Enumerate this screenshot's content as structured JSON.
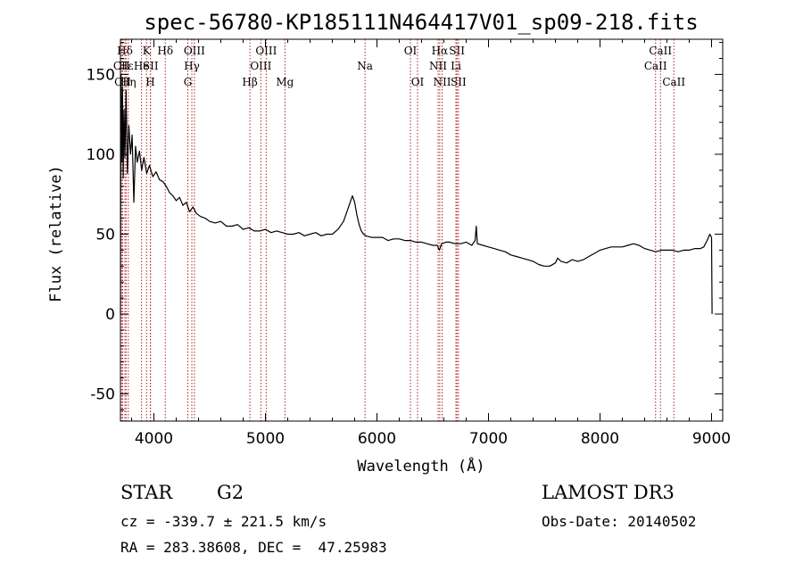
{
  "chart_data": {
    "type": "line",
    "title": "spec-56780-KP185111N464417V01_sp09-218.fits",
    "xlabel": "Wavelength (Å)",
    "ylabel": "Flux (relative)",
    "xlim": [
      3700,
      9100
    ],
    "ylim": [
      -67,
      172
    ],
    "x_ticks": [
      4000,
      5000,
      6000,
      7000,
      8000,
      9000
    ],
    "y_ticks": [
      -50,
      0,
      50,
      100,
      150
    ],
    "grid": false,
    "series_color": "#000000",
    "line_marker_color": "#b22222",
    "spectral_lines": [
      {
        "label": "CII",
        "x": 3710,
        "row": 1
      },
      {
        "label": "CII",
        "x": 3720,
        "row": 2
      },
      {
        "label": "Hδ",
        "x": 3740,
        "row": 0
      },
      {
        "label": "Hε",
        "x": 3750,
        "row": 1
      },
      {
        "label": "Hη",
        "x": 3770,
        "row": 2
      },
      {
        "label": "K",
        "x": 3934,
        "row": 0
      },
      {
        "label": "He",
        "x": 3889,
        "row": 1
      },
      {
        "label": "SII",
        "x": 3970,
        "row": 1
      },
      {
        "label": "H",
        "x": 3968,
        "row": 2
      },
      {
        "label": "Hδ",
        "x": 4102,
        "row": 0
      },
      {
        "label": "OIII",
        "x": 4363,
        "row": 0
      },
      {
        "label": "Hγ",
        "x": 4340,
        "row": 1
      },
      {
        "label": "G",
        "x": 4304,
        "row": 2
      },
      {
        "label": "Hβ",
        "x": 4861,
        "row": 2
      },
      {
        "label": "OIII",
        "x": 5007,
        "row": 0
      },
      {
        "label": "OIII",
        "x": 4959,
        "row": 1
      },
      {
        "label": "Mg",
        "x": 5175,
        "row": 2
      },
      {
        "label": "Na",
        "x": 5893,
        "row": 1
      },
      {
        "label": "OI",
        "x": 6300,
        "row": 0
      },
      {
        "label": "OI",
        "x": 6364,
        "row": 2
      },
      {
        "label": "Hα",
        "x": 6563,
        "row": 0
      },
      {
        "label": "NII",
        "x": 6548,
        "row": 1
      },
      {
        "label": "NII",
        "x": 6584,
        "row": 2
      },
      {
        "label": "SII",
        "x": 6717,
        "row": 0
      },
      {
        "label": "Li",
        "x": 6708,
        "row": 1
      },
      {
        "label": "SII",
        "x": 6731,
        "row": 2
      },
      {
        "label": "CaII",
        "x": 8542,
        "row": 0
      },
      {
        "label": "CaII",
        "x": 8498,
        "row": 1
      },
      {
        "label": "CaII",
        "x": 8662,
        "row": 2
      }
    ],
    "series": [
      {
        "x": [
          3700,
          3705,
          3712,
          3718,
          3725,
          3732,
          3740,
          3750,
          3762,
          3775,
          3790,
          3805,
          3820,
          3835,
          3850,
          3870,
          3890,
          3910,
          3935,
          3960,
          3990,
          4020,
          4050,
          4080,
          4110,
          4140,
          4170,
          4200,
          4230,
          4260,
          4290,
          4320,
          4350,
          4380,
          4420,
          4460,
          4500,
          4550,
          4600,
          4650,
          4700,
          4750,
          4800,
          4850,
          4900,
          4950,
          5000,
          5050,
          5100,
          5150,
          5200,
          5250,
          5300,
          5350,
          5400,
          5450,
          5500,
          5550,
          5600,
          5650,
          5700,
          5730,
          5760,
          5780,
          5800,
          5820,
          5840,
          5860,
          5880,
          5900,
          5950,
          6000,
          6050,
          6100,
          6150,
          6200,
          6250,
          6300,
          6350,
          6400,
          6450,
          6500,
          6540,
          6560,
          6580,
          6620,
          6650,
          6700,
          6750,
          6800,
          6850,
          6880,
          6890,
          6900,
          6950,
          7000,
          7050,
          7100,
          7150,
          7200,
          7250,
          7300,
          7350,
          7400,
          7450,
          7500,
          7550,
          7600,
          7620,
          7650,
          7700,
          7750,
          7800,
          7850,
          7900,
          7950,
          8000,
          8050,
          8100,
          8150,
          8200,
          8250,
          8300,
          8350,
          8400,
          8450,
          8500,
          8550,
          8600,
          8650,
          8700,
          8750,
          8800,
          8850,
          8900,
          8930,
          8960,
          8985,
          9000,
          9005
        ],
        "y": [
          0,
          150,
          95,
          142,
          85,
          128,
          98,
          140,
          88,
          118,
          100,
          112,
          70,
          105,
          95,
          102,
          90,
          98,
          88,
          93,
          86,
          89,
          84,
          83,
          80,
          76,
          74,
          71,
          73,
          68,
          70,
          64,
          67,
          63,
          61,
          60,
          58,
          57,
          58,
          55,
          55,
          56,
          53,
          54,
          52,
          52,
          53,
          51,
          52,
          51,
          50,
          50,
          51,
          49,
          50,
          51,
          49,
          50,
          50,
          53,
          58,
          64,
          70,
          74,
          70,
          62,
          56,
          52,
          50,
          49,
          48,
          48,
          48,
          46,
          47,
          47,
          46,
          46,
          45,
          45,
          44,
          43,
          43,
          40,
          44,
          45,
          45,
          44,
          44,
          45,
          43,
          46,
          55,
          44,
          43,
          42,
          41,
          40,
          39,
          37,
          36,
          35,
          34,
          33,
          31,
          30,
          30,
          32,
          35,
          33,
          32,
          34,
          33,
          34,
          36,
          38,
          40,
          41,
          42,
          42,
          42,
          43,
          44,
          43,
          41,
          40,
          39,
          40,
          40,
          40,
          39,
          40,
          40,
          41,
          41,
          42,
          46,
          50,
          48,
          0
        ]
      }
    ]
  },
  "info": {
    "object_class": "STAR",
    "subclass": "G2",
    "survey": "LAMOST DR3",
    "redshift": "cz = -339.7 ± 221.5 km/s",
    "obs_date": "Obs-Date: 20140502",
    "coords": "RA = 283.38608, DEC =  47.25983"
  }
}
